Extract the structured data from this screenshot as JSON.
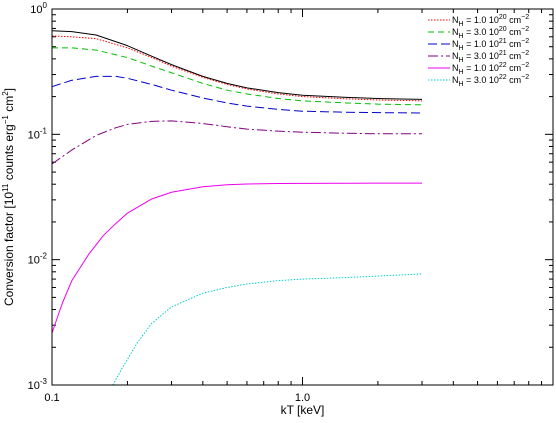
{
  "chart_data": {
    "type": "line",
    "xlabel": "kT [keV]",
    "ylabel": "Conversion factor [10^11 counts erg^-1 cm^2]",
    "xscale": "log",
    "yscale": "log",
    "xlim": [
      0.1,
      10.0
    ],
    "ylim": [
      0.001,
      1.0
    ],
    "x_ticks": [
      {
        "value": 0.1,
        "label": "0.1"
      },
      {
        "value": 1.0,
        "label": "1.0"
      }
    ],
    "y_ticks": [
      {
        "value": 1.0,
        "mantissa": "10",
        "exp": "0"
      },
      {
        "value": 0.1,
        "mantissa": "10",
        "exp": "-1"
      },
      {
        "value": 0.01,
        "mantissa": "10",
        "exp": "-2"
      },
      {
        "value": 0.001,
        "mantissa": "10",
        "exp": "-3"
      }
    ],
    "grid": false,
    "legend_position": "top-right",
    "series": [
      {
        "name": "",
        "color": "#000000",
        "dash": "",
        "points": [
          [
            0.1,
            0.67
          ],
          [
            0.12,
            0.66
          ],
          [
            0.15,
            0.62
          ],
          [
            0.2,
            0.51
          ],
          [
            0.25,
            0.42
          ],
          [
            0.3,
            0.36
          ],
          [
            0.4,
            0.29
          ],
          [
            0.5,
            0.255
          ],
          [
            0.6,
            0.235
          ],
          [
            0.8,
            0.215
          ],
          [
            1.0,
            0.205
          ],
          [
            1.5,
            0.197
          ],
          [
            2.0,
            0.193
          ],
          [
            3.0,
            0.19
          ]
        ]
      },
      {
        "name_prefix": "N",
        "name_sub": "H",
        "name_mid": " = 1.0 10",
        "name_exp": "20",
        "name_unit": " cm",
        "name_unit_exp": "−2",
        "color": "#ff0000",
        "dash": "1.5,1.5",
        "points": [
          [
            0.1,
            0.61
          ],
          [
            0.12,
            0.6
          ],
          [
            0.15,
            0.58
          ],
          [
            0.2,
            0.49
          ],
          [
            0.25,
            0.41
          ],
          [
            0.3,
            0.35
          ],
          [
            0.4,
            0.285
          ],
          [
            0.5,
            0.25
          ],
          [
            0.6,
            0.23
          ],
          [
            0.8,
            0.21
          ],
          [
            1.0,
            0.2
          ],
          [
            1.5,
            0.192
          ],
          [
            2.0,
            0.188
          ],
          [
            3.0,
            0.185
          ]
        ]
      },
      {
        "name_prefix": "N",
        "name_sub": "H",
        "name_mid": " = 3.0 10",
        "name_exp": "20",
        "name_unit": " cm",
        "name_unit_exp": "−2",
        "color": "#00c000",
        "dash": "6,4",
        "points": [
          [
            0.1,
            0.49
          ],
          [
            0.12,
            0.49
          ],
          [
            0.15,
            0.47
          ],
          [
            0.2,
            0.41
          ],
          [
            0.25,
            0.35
          ],
          [
            0.3,
            0.31
          ],
          [
            0.4,
            0.255
          ],
          [
            0.5,
            0.225
          ],
          [
            0.6,
            0.21
          ],
          [
            0.8,
            0.193
          ],
          [
            1.0,
            0.185
          ],
          [
            1.5,
            0.178
          ],
          [
            2.0,
            0.174
          ],
          [
            3.0,
            0.172
          ]
        ]
      },
      {
        "name_prefix": "N",
        "name_sub": "H",
        "name_mid": " = 1.0 10",
        "name_exp": "21",
        "name_unit": " cm",
        "name_unit_exp": "−2",
        "color": "#0000cc",
        "dash": "9,4",
        "points": [
          [
            0.1,
            0.24
          ],
          [
            0.12,
            0.27
          ],
          [
            0.15,
            0.29
          ],
          [
            0.18,
            0.29
          ],
          [
            0.2,
            0.28
          ],
          [
            0.25,
            0.25
          ],
          [
            0.3,
            0.225
          ],
          [
            0.4,
            0.195
          ],
          [
            0.5,
            0.178
          ],
          [
            0.6,
            0.168
          ],
          [
            0.8,
            0.158
          ],
          [
            1.0,
            0.153
          ],
          [
            1.5,
            0.15
          ],
          [
            2.0,
            0.149
          ],
          [
            3.0,
            0.148
          ]
        ]
      },
      {
        "name_prefix": "N",
        "name_sub": "H",
        "name_mid": " = 3.0 10",
        "name_exp": "21",
        "name_unit": " cm",
        "name_unit_exp": "−2",
        "color": "#800080",
        "dash": "10,3,2,3",
        "points": [
          [
            0.1,
            0.058
          ],
          [
            0.12,
            0.075
          ],
          [
            0.15,
            0.098
          ],
          [
            0.18,
            0.113
          ],
          [
            0.2,
            0.12
          ],
          [
            0.25,
            0.127
          ],
          [
            0.3,
            0.128
          ],
          [
            0.4,
            0.122
          ],
          [
            0.5,
            0.115
          ],
          [
            0.6,
            0.11
          ],
          [
            0.8,
            0.106
          ],
          [
            1.0,
            0.104
          ],
          [
            1.5,
            0.102
          ],
          [
            2.0,
            0.101
          ],
          [
            3.0,
            0.101
          ]
        ]
      },
      {
        "name_prefix": "N",
        "name_sub": "H",
        "name_mid": " = 1.0 10",
        "name_exp": "22",
        "name_unit": " cm",
        "name_unit_exp": "−2",
        "color": "#ee00ee",
        "dash": "",
        "points": [
          [
            0.1,
            0.0026
          ],
          [
            0.11,
            0.0045
          ],
          [
            0.12,
            0.0068
          ],
          [
            0.14,
            0.011
          ],
          [
            0.16,
            0.0155
          ],
          [
            0.18,
            0.0195
          ],
          [
            0.2,
            0.0235
          ],
          [
            0.25,
            0.0305
          ],
          [
            0.3,
            0.0345
          ],
          [
            0.4,
            0.0382
          ],
          [
            0.5,
            0.0396
          ],
          [
            0.6,
            0.0402
          ],
          [
            0.8,
            0.0405
          ],
          [
            1.0,
            0.0406
          ],
          [
            1.5,
            0.0407
          ],
          [
            2.0,
            0.0408
          ],
          [
            3.0,
            0.0408
          ]
        ]
      },
      {
        "name_prefix": "N",
        "name_sub": "H",
        "name_mid": " = 3.0 10",
        "name_exp": "22",
        "name_unit": " cm",
        "name_unit_exp": "−2",
        "color": "#00cccc",
        "dash": "1.5,1.5",
        "points": [
          [
            0.175,
            0.001
          ],
          [
            0.19,
            0.00135
          ],
          [
            0.22,
            0.0022
          ],
          [
            0.25,
            0.0031
          ],
          [
            0.3,
            0.0042
          ],
          [
            0.4,
            0.0054
          ],
          [
            0.5,
            0.006
          ],
          [
            0.6,
            0.0064
          ],
          [
            0.8,
            0.0068
          ],
          [
            1.0,
            0.007
          ],
          [
            1.5,
            0.0072
          ],
          [
            2.0,
            0.0074
          ],
          [
            3.0,
            0.0077
          ]
        ]
      }
    ]
  }
}
